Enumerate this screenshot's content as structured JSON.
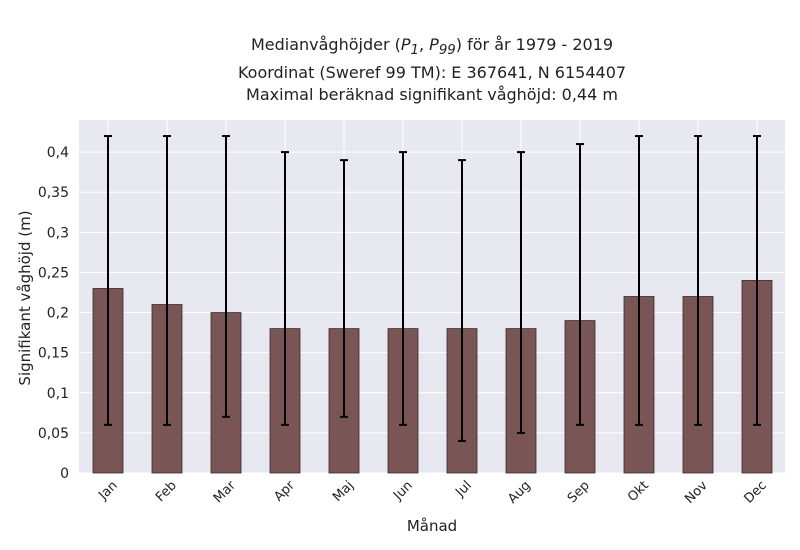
{
  "title": {
    "line1_text": "Medianvåghöjder (",
    "p1_main": "P",
    "p1_sub": "1",
    "separator": ",",
    "p99_main": "P",
    "p99_sub": "99",
    "line1_tail": ") för år 1979 - 2019",
    "line2": "Koordinat (Sweref 99 TM): E 367641, N 6154407",
    "line3": "Maximal beräknad signifikant våghöjd: 0,44 m"
  },
  "colors": {
    "bar": "#7a5555",
    "bar_edge": "#3a2a2a",
    "plot_bg": "#e8e8f0",
    "grid": "#ffffff",
    "errorbar": "#000000"
  },
  "chart_data": {
    "type": "bar",
    "xlabel": "Månad",
    "ylabel": "Signifikant våghöjd (m)",
    "ylim": [
      0,
      0.44
    ],
    "grid": true,
    "categories": [
      "Jan",
      "Feb",
      "Mar",
      "Apr",
      "Maj",
      "Jun",
      "Jul",
      "Aug",
      "Sep",
      "Okt",
      "Nov",
      "Dec"
    ],
    "values": [
      0.23,
      0.21,
      0.2,
      0.18,
      0.18,
      0.18,
      0.18,
      0.18,
      0.19,
      0.22,
      0.22,
      0.24
    ],
    "p1": [
      0.06,
      0.06,
      0.07,
      0.06,
      0.07,
      0.06,
      0.04,
      0.05,
      0.06,
      0.06,
      0.06,
      0.06
    ],
    "p99": [
      0.42,
      0.42,
      0.42,
      0.4,
      0.39,
      0.4,
      0.39,
      0.4,
      0.41,
      0.42,
      0.42,
      0.42
    ],
    "yticks": [
      0,
      0.05,
      0.1,
      0.15,
      0.2,
      0.25,
      0.3,
      0.35,
      0.4
    ],
    "ytick_labels": [
      "0",
      "0,05",
      "0,1",
      "0,15",
      "0,2",
      "0,25",
      "0,3",
      "0,35",
      "0,4"
    ]
  }
}
